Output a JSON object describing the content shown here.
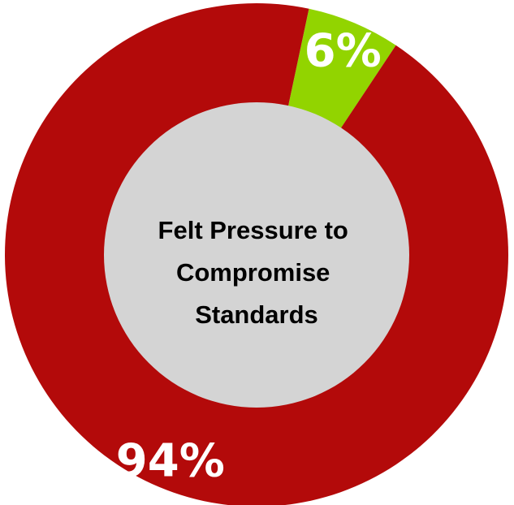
{
  "chart_data": {
    "type": "pie",
    "style": "donut",
    "center_label": [
      "Felt Pressure to",
      "Compromise",
      "Standards"
    ],
    "slices": [
      {
        "label": "6%",
        "value": 6,
        "color": "#92d400"
      },
      {
        "label": "94%",
        "value": 94,
        "color": "#b30a0a"
      }
    ],
    "center_color": "#d4d4d4",
    "legend": "none"
  }
}
